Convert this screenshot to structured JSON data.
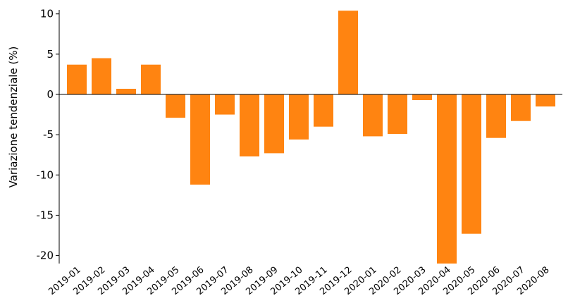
{
  "chart_data": {
    "type": "bar",
    "ylabel": "Variazione tendenziale (%)",
    "xlabel": "",
    "ylim": [
      -21,
      10.5
    ],
    "yticks": [
      10,
      5,
      0,
      -5,
      -10,
      -15,
      -20
    ],
    "grid": false,
    "bar_color": "#ff8411",
    "categories": [
      "2019-01",
      "2019-02",
      "2019-03",
      "2019-04",
      "2019-05",
      "2019-06",
      "2019-07",
      "2019-08",
      "2019-09",
      "2019-10",
      "2019-11",
      "2019-12",
      "2020-01",
      "2020-02",
      "2020-03",
      "2020-04",
      "2020-05",
      "2020-06",
      "2020-07",
      "2020-08"
    ],
    "values": [
      3.7,
      4.5,
      0.7,
      3.7,
      -2.9,
      -11.2,
      -2.5,
      -7.7,
      -7.3,
      -5.6,
      -4.0,
      10.4,
      -5.2,
      -4.9,
      -0.7,
      -21.0,
      -17.3,
      -5.4,
      -3.3,
      -1.5
    ]
  }
}
